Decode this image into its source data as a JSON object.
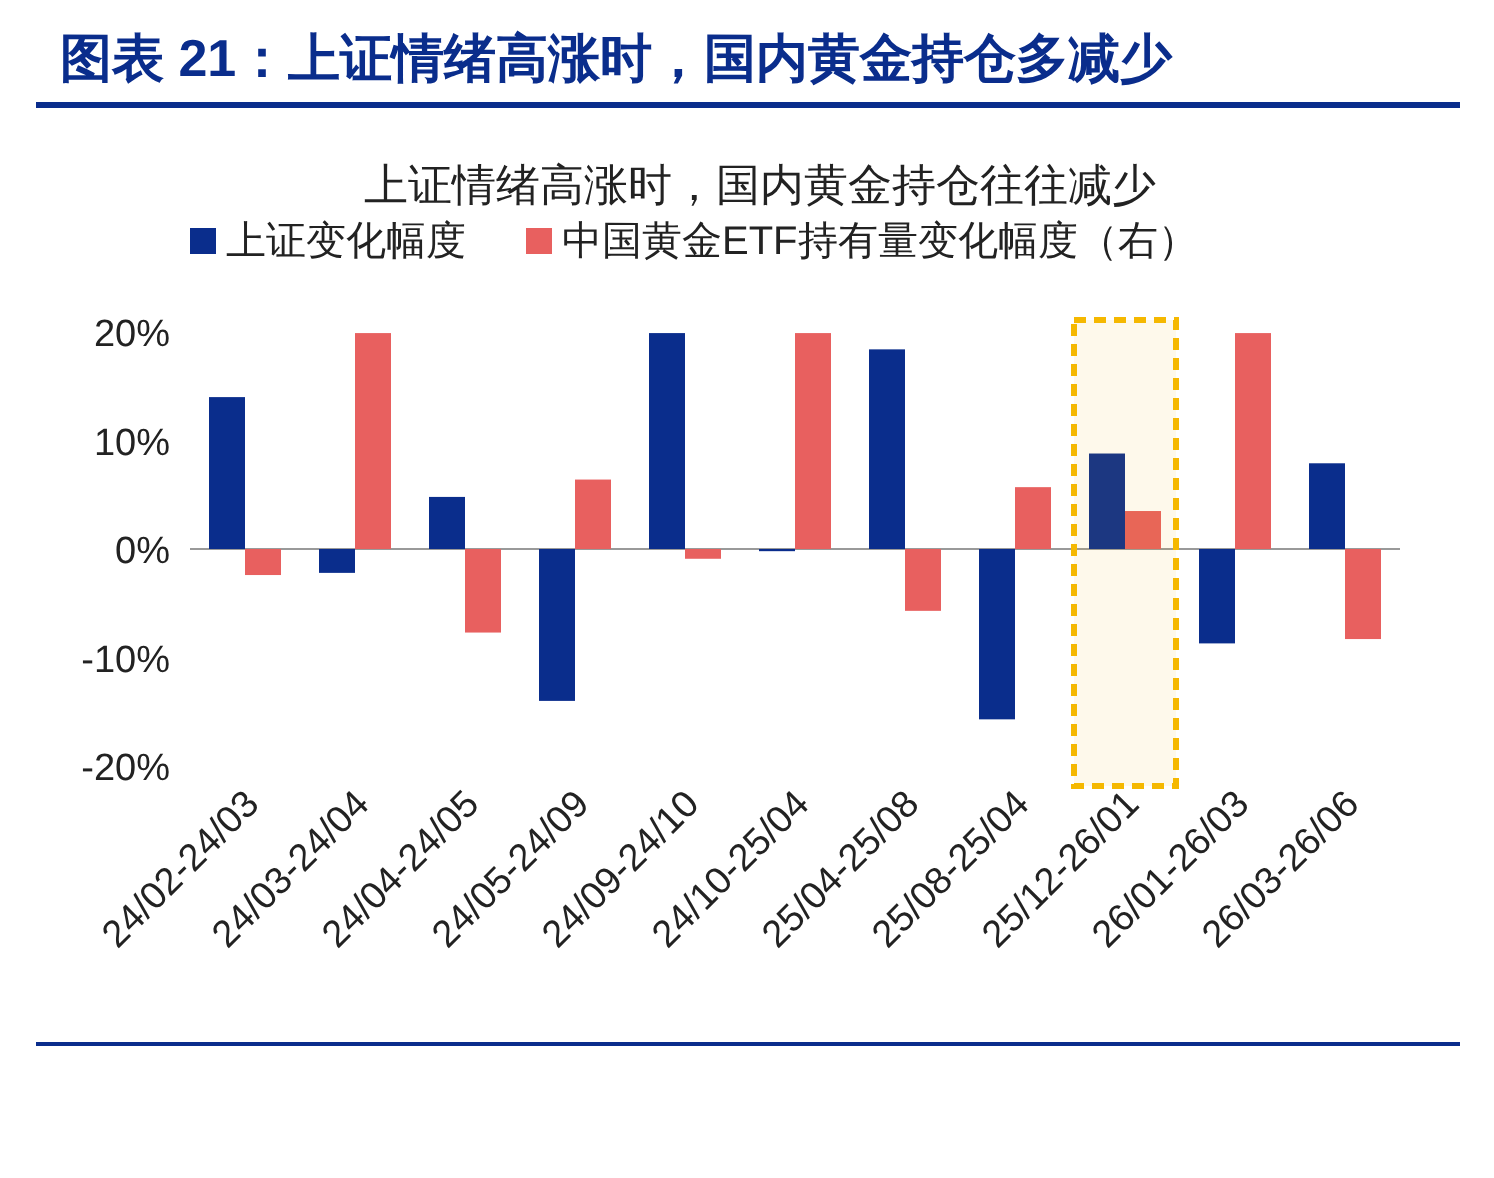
{
  "chart_data": {
    "type": "bar",
    "title": "图表 21：上证情绪高涨时，国内黄金持仓多减少",
    "subtitle": "上证情绪高涨时，国内黄金持仓往往减少",
    "categories": [
      "24/02-24/03",
      "24/03-24/04",
      "24/04-24/05",
      "24/05-24/09",
      "24/09-24/10",
      "24/10-25/04",
      "25/04-25/08",
      "25/08-25/04",
      "25/12-26/01",
      "26/01-26/03",
      "26/03-26/06"
    ],
    "series": [
      {
        "name": "上证变化幅度",
        "color": "#0a2d8c",
        "values": [
          14.0,
          -2.2,
          4.8,
          -14.0,
          19.9,
          -0.2,
          18.4,
          -15.7,
          8.8,
          -8.7,
          7.9
        ]
      },
      {
        "name": "中国黄金ETF持有量变化幅度（右）",
        "color": "#e8605f",
        "values": [
          -2.4,
          19.9,
          -7.7,
          6.4,
          -0.9,
          19.9,
          -5.7,
          5.7,
          3.5,
          19.9,
          -8.3
        ]
      }
    ],
    "ylim": [
      -20,
      20
    ],
    "yticks": [
      {
        "value": -20,
        "label": "-20%"
      },
      {
        "value": -10,
        "label": "-10%"
      },
      {
        "value": 0,
        "label": "0%"
      },
      {
        "value": 10,
        "label": "10%"
      },
      {
        "value": 20,
        "label": "20%"
      }
    ],
    "bands": [
      {
        "axis": "x",
        "from": "25/12-26/01",
        "to": "25/12-26/01",
        "color": "#f5b800"
      }
    ],
    "legend": "top"
  }
}
